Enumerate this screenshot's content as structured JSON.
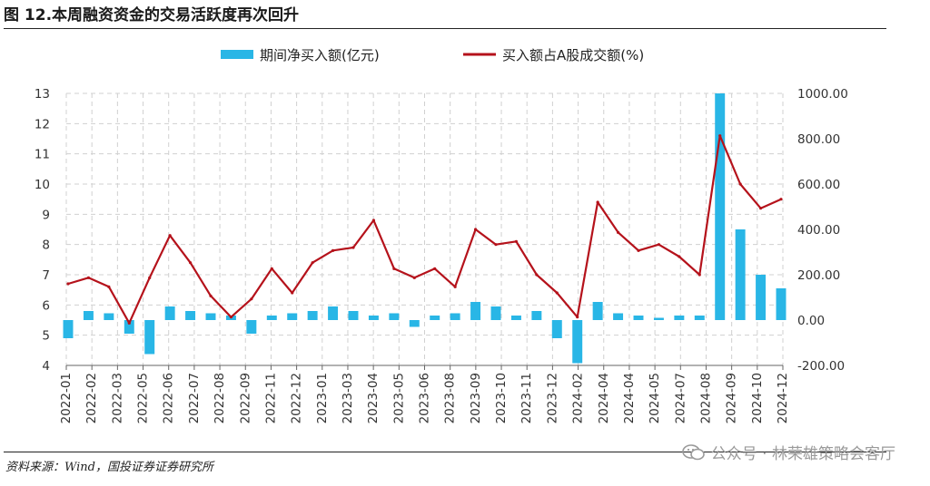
{
  "title": "图 12.本周融资资金的交易活跃度再次回升",
  "source": "资料来源：Wind，国投证券证券研究所",
  "watermark": "公众号 · 林荣雄策略会客厅",
  "colors": {
    "net_buy": "#29b6e6",
    "ratio": "#b5121b",
    "grid": "#d0d0d0"
  },
  "chart_data": {
    "type": "bar+line",
    "dual_axis": true,
    "grid": true,
    "legend_position": "top",
    "left_axis": {
      "ticks": [
        "13",
        "12",
        "11",
        "10",
        "9",
        "8",
        "7",
        "6",
        "5",
        "4"
      ],
      "ylim": [
        4,
        13
      ]
    },
    "right_axis": {
      "ticks": [
        "1000.00",
        "800.00",
        "600.00",
        "400.00",
        "200.00",
        "0.00",
        "-200.00"
      ],
      "ylim": [
        -200,
        1000
      ]
    },
    "x_ticks": [
      "2022-01",
      "2022-02",
      "2022-03",
      "2022-05",
      "2022-06",
      "2022-07",
      "2022-08",
      "2022-09",
      "2022-11",
      "2022-12",
      "2023-01",
      "2023-03",
      "2023-04",
      "2023-05",
      "2023-06",
      "2023-08",
      "2023-09",
      "2023-10",
      "2023-11",
      "2023-12",
      "2024-02",
      "2024-04",
      "2024-04",
      "2024-05",
      "2024-07",
      "2024-08",
      "2024-09",
      "2024-10",
      "2024-12"
    ],
    "series": [
      {
        "name": "期间净买入额(亿元)",
        "kind": "bar",
        "axis": "right",
        "x": [
          "2022-01",
          "2022-02",
          "2022-03",
          "2022-04",
          "2022-05",
          "2022-06",
          "2022-07",
          "2022-08",
          "2022-09",
          "2022-10",
          "2022-11",
          "2022-12",
          "2023-01",
          "2023-02",
          "2023-03",
          "2023-04",
          "2023-05",
          "2023-06",
          "2023-07",
          "2023-08",
          "2023-09",
          "2023-10",
          "2023-11",
          "2023-12",
          "2024-01",
          "2024-02",
          "2024-03",
          "2024-04",
          "2024-05",
          "2024-06",
          "2024-07",
          "2024-08",
          "2024-09",
          "2024-10",
          "2024-11",
          "2024-12"
        ],
        "values": [
          -80,
          40,
          30,
          -60,
          -150,
          60,
          40,
          30,
          20,
          -60,
          20,
          30,
          40,
          60,
          40,
          20,
          30,
          -30,
          20,
          30,
          80,
          60,
          20,
          40,
          -80,
          -190,
          80,
          30,
          20,
          10,
          20,
          20,
          1000,
          400,
          200,
          140
        ]
      },
      {
        "name": "买入额占A股成交额(%)",
        "kind": "line",
        "axis": "left",
        "x": [
          "2022-01",
          "2022-02",
          "2022-03",
          "2022-04",
          "2022-05",
          "2022-06",
          "2022-07",
          "2022-08",
          "2022-09",
          "2022-10",
          "2022-11",
          "2022-12",
          "2023-01",
          "2023-02",
          "2023-03",
          "2023-04",
          "2023-05",
          "2023-06",
          "2023-07",
          "2023-08",
          "2023-09",
          "2023-10",
          "2023-11",
          "2023-12",
          "2024-01",
          "2024-02",
          "2024-03",
          "2024-04",
          "2024-05",
          "2024-06",
          "2024-07",
          "2024-08",
          "2024-09",
          "2024-10",
          "2024-11",
          "2024-12"
        ],
        "values": [
          6.7,
          6.9,
          6.6,
          5.4,
          6.9,
          8.3,
          7.4,
          6.3,
          5.6,
          6.2,
          7.2,
          6.4,
          7.4,
          7.8,
          7.9,
          8.8,
          7.2,
          6.9,
          7.2,
          6.6,
          8.5,
          8.0,
          8.1,
          7.0,
          6.4,
          5.6,
          9.4,
          8.4,
          7.8,
          8.0,
          7.6,
          7.0,
          11.6,
          10.0,
          9.2,
          9.5
        ]
      }
    ]
  }
}
